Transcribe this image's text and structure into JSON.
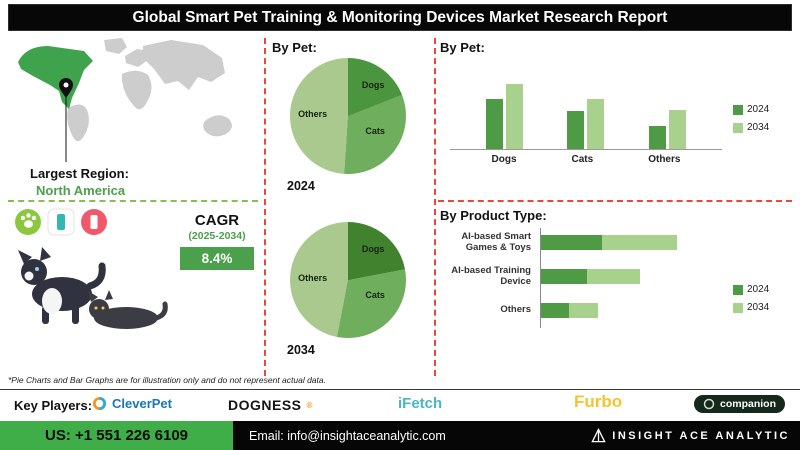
{
  "title": "Global Smart Pet Training & Monitoring Devices Market Research Report",
  "map": {
    "label": "Largest Region:",
    "value": "North America"
  },
  "cagr": {
    "label": "CAGR",
    "period": "(2025-2034)",
    "value": "8.4%"
  },
  "note": "*Pie Charts and Bar Graphs are for illustration only and do not represent actual data.",
  "key_players": {
    "label": "Key Players:",
    "items": [
      {
        "name": "CleverPet",
        "color": "#1b75bc"
      },
      {
        "name": "DOGNESS",
        "mark": "®",
        "color": "#141414"
      },
      {
        "name": "iFetch",
        "color": "#4ab5c4"
      },
      {
        "name": "Furbo",
        "color": "#f4c430"
      },
      {
        "name": "companion",
        "color": "#ffffff"
      }
    ]
  },
  "footer": {
    "phone": "US: +1 551 226 6109",
    "email": "Email: info@insightaceanalytic.com",
    "brand": "INSIGHT ACE ANALYTIC"
  },
  "colors": {
    "green_dark": "#4e9a45",
    "green_light": "#a9d18e",
    "red_dash": "#ef4438",
    "footer_green": "#3fae49"
  },
  "chart_data": [
    {
      "type": "pie",
      "title": "By Pet:",
      "year": "2024",
      "labels": [
        "Dogs",
        "Cats",
        "Others"
      ],
      "values": [
        19,
        32,
        49
      ],
      "colors": [
        "#4c953f",
        "#6fae5c",
        "#a9c98e"
      ]
    },
    {
      "type": "pie",
      "year": "2034",
      "labels": [
        "Dogs",
        "Cats",
        "Others"
      ],
      "values": [
        22,
        31,
        47
      ],
      "colors": [
        "#41822f",
        "#6fae5c",
        "#a9c98e"
      ]
    },
    {
      "type": "bar",
      "title": "By Pet:",
      "categories": [
        "Dogs",
        "Cats",
        "Others"
      ],
      "ylim": [
        0,
        100
      ],
      "series": [
        {
          "name": "2024",
          "color": "#4e9a45",
          "values": [
            55,
            42,
            25
          ]
        },
        {
          "name": "2034",
          "color": "#a9d18e",
          "values": [
            72,
            55,
            43
          ]
        }
      ]
    },
    {
      "type": "hbar-stacked",
      "title": "By Product Type:",
      "categories": [
        "AI-based Smart Games & Toys",
        "AI-based Training Device",
        "Others"
      ],
      "series": [
        {
          "name": "2024",
          "color": "#4e9a45",
          "values": [
            41,
            31,
            19
          ]
        },
        {
          "name": "2034",
          "color": "#a9d18e",
          "values": [
            50,
            35,
            19
          ]
        }
      ]
    }
  ]
}
